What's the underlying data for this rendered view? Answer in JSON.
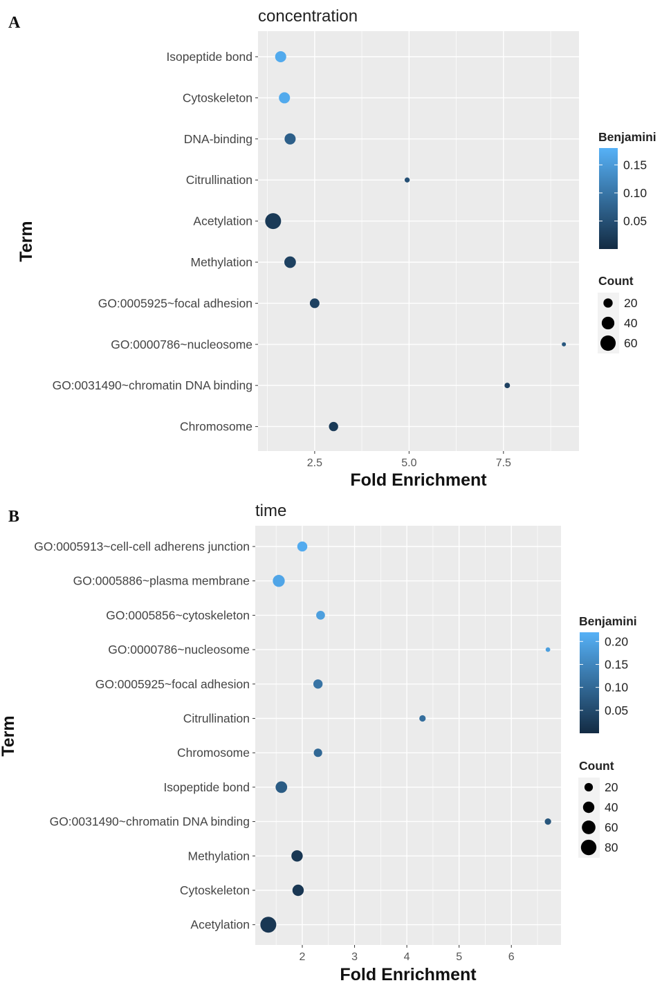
{
  "chart_data": [
    {
      "panel_label": "A",
      "type": "scatter",
      "title": "concentration",
      "xlabel": "Fold Enrichment",
      "ylabel": "Term",
      "xlim": [
        1.0,
        9.5
      ],
      "x_ticks": [
        2.5,
        5.0,
        7.5
      ],
      "x_tick_labels": [
        "2.5",
        "5.0",
        "7.5"
      ],
      "categories": [
        "Isopeptide bond",
        "Cytoskeleton",
        "DNA-binding",
        "Citrullination",
        "Acetylation",
        "Methylation",
        "GO:0005925~focal adhesion",
        "GO:0000786~nucleosome",
        "GO:0031490~chromatin DNA binding",
        "Chromosome"
      ],
      "points": [
        {
          "term": "Isopeptide bond",
          "x": 1.6,
          "count": 30,
          "benjamini": 0.17
        },
        {
          "term": "Cytoskeleton",
          "x": 1.7,
          "count": 30,
          "benjamini": 0.17
        },
        {
          "term": "DNA-binding",
          "x": 1.85,
          "count": 30,
          "benjamini": 0.07
        },
        {
          "term": "Citrullination",
          "x": 4.95,
          "count": 5,
          "benjamini": 0.05
        },
        {
          "term": "Acetylation",
          "x": 1.4,
          "count": 65,
          "benjamini": 0.02
        },
        {
          "term": "Methylation",
          "x": 1.85,
          "count": 33,
          "benjamini": 0.03
        },
        {
          "term": "GO:0005925~focal adhesion",
          "x": 2.5,
          "count": 22,
          "benjamini": 0.03
        },
        {
          "term": "GO:0000786~nucleosome",
          "x": 9.1,
          "count": 3,
          "benjamini": 0.06
        },
        {
          "term": "GO:0031490~chromatin DNA binding",
          "x": 7.6,
          "count": 6,
          "benjamini": 0.03
        },
        {
          "term": "Chromosome",
          "x": 3.0,
          "count": 20,
          "benjamini": 0.02
        }
      ],
      "color_legend": {
        "title": "Benjamini",
        "min": 0.0,
        "max": 0.18,
        "ticks": [
          0.15,
          0.1,
          0.05
        ],
        "tick_labels": [
          "0.15",
          "0.10",
          "0.05"
        ]
      },
      "size_legend": {
        "title": "Count",
        "values": [
          20,
          40,
          60
        ],
        "labels": [
          "20",
          "40",
          "60"
        ]
      },
      "grid": true,
      "legend_position": "right"
    },
    {
      "panel_label": "B",
      "type": "scatter",
      "title": "time",
      "xlabel": "Fold Enrichment",
      "ylabel": "Term",
      "xlim": [
        1.1,
        6.95
      ],
      "x_ticks": [
        2,
        3,
        4,
        5,
        6
      ],
      "x_tick_labels": [
        "2",
        "3",
        "4",
        "5",
        "6"
      ],
      "categories": [
        "GO:0005913~cell-cell adherens junction",
        "GO:0005886~plasma membrane",
        "GO:0005856~cytoskeleton",
        "GO:0000786~nucleosome",
        "GO:0005925~focal adhesion",
        "Citrullination",
        "Chromosome",
        "Isopeptide bond",
        "GO:0031490~chromatin DNA binding",
        "Methylation",
        "Cytoskeleton",
        "Acetylation"
      ],
      "points": [
        {
          "term": "GO:0005913~cell-cell adherens junction",
          "x": 2.0,
          "count": 30,
          "benjamini": 0.21
        },
        {
          "term": "GO:0005886~plasma membrane",
          "x": 1.55,
          "count": 45,
          "benjamini": 0.2
        },
        {
          "term": "GO:0005856~cytoskeleton",
          "x": 2.35,
          "count": 22,
          "benjamini": 0.19
        },
        {
          "term": "GO:0000786~nucleosome",
          "x": 6.7,
          "count": 4,
          "benjamini": 0.19
        },
        {
          "term": "GO:0005925~focal adhesion",
          "x": 2.3,
          "count": 25,
          "benjamini": 0.12
        },
        {
          "term": "Citrullination",
          "x": 4.3,
          "count": 10,
          "benjamini": 0.11
        },
        {
          "term": "Chromosome",
          "x": 2.3,
          "count": 20,
          "benjamini": 0.1
        },
        {
          "term": "Isopeptide bond",
          "x": 1.6,
          "count": 42,
          "benjamini": 0.08
        },
        {
          "term": "GO:0031490~chromatin DNA binding",
          "x": 6.7,
          "count": 10,
          "benjamini": 0.07
        },
        {
          "term": "Methylation",
          "x": 1.9,
          "count": 40,
          "benjamini": 0.02
        },
        {
          "term": "Cytoskeleton",
          "x": 1.92,
          "count": 40,
          "benjamini": 0.02
        },
        {
          "term": "Acetylation",
          "x": 1.35,
          "count": 85,
          "benjamini": 0.02
        }
      ],
      "color_legend": {
        "title": "Benjamini",
        "min": 0.0,
        "max": 0.22,
        "ticks": [
          0.2,
          0.15,
          0.1,
          0.05
        ],
        "tick_labels": [
          "0.20",
          "0.15",
          "0.10",
          "0.05"
        ]
      },
      "size_legend": {
        "title": "Count",
        "values": [
          20,
          40,
          60,
          80
        ],
        "labels": [
          "20",
          "40",
          "60",
          "80"
        ]
      },
      "grid": true,
      "legend_position": "right"
    }
  ],
  "colors": {
    "panel_background": "#ebebeb",
    "gridline": "#ffffff",
    "gradient_low": "#132b43",
    "gradient_high": "#56b1f7",
    "tick_color": "#333333"
  }
}
